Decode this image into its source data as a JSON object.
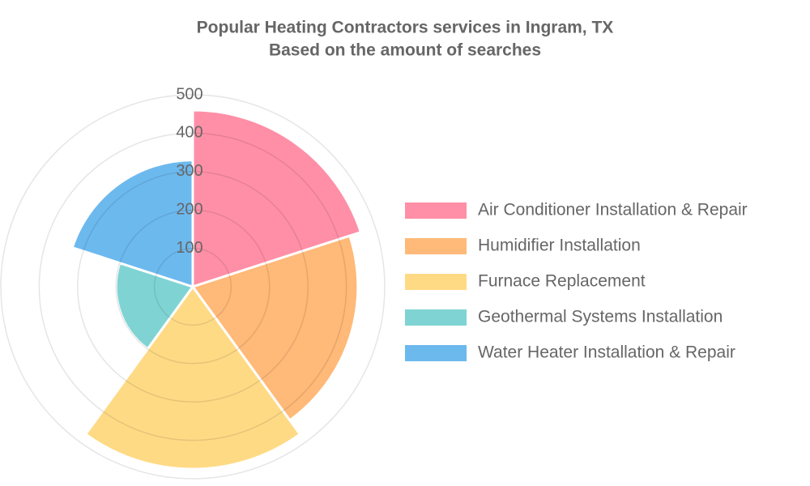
{
  "chart_data": {
    "type": "polarArea",
    "title": "Popular Heating Contractors services in Ingram, TX",
    "subtitle": "Based on the amount of searches",
    "categories": [
      "Air Conditioner Installation & Repair",
      "Humidifier Installation",
      "Furnace Replacement",
      "Geothermal Systems Installation",
      "Water Heater Installation & Repair"
    ],
    "values": [
      460,
      430,
      475,
      200,
      330
    ],
    "colors": [
      "#ff8fa6",
      "#ffb978",
      "#ffda85",
      "#7fd4d3",
      "#6cb9ee"
    ],
    "rlim": [
      0,
      500
    ],
    "rticks": [
      100,
      200,
      300,
      400,
      500
    ],
    "grid": true,
    "legend": "right"
  }
}
